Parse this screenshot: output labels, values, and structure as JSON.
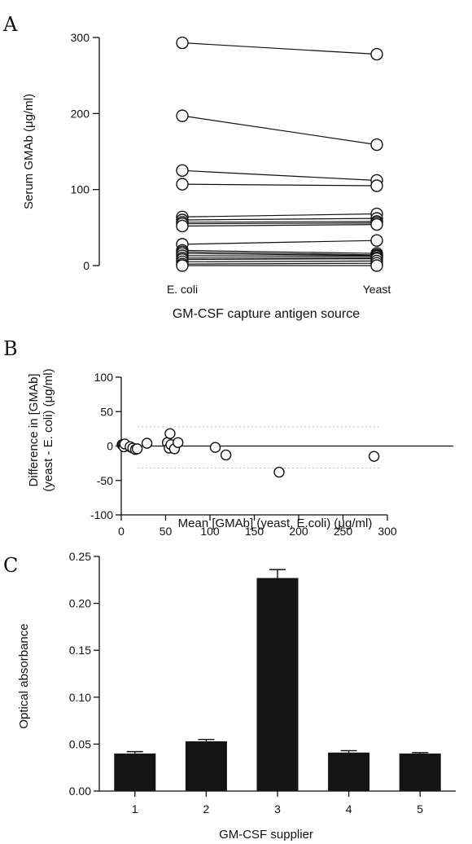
{
  "chart_data": [
    {
      "panel": "A",
      "type": "line",
      "xlabel": "GM-CSF capture antigen source",
      "ylabel": "Serum GMAb (μg/ml)",
      "categories": [
        "E. coli",
        "Yeast"
      ],
      "ylim": [
        0,
        300
      ],
      "yticks": [
        "0",
        "100",
        "200",
        "300"
      ],
      "pairs": [
        [
          293,
          278
        ],
        [
          197,
          159
        ],
        [
          125,
          112
        ],
        [
          107,
          105
        ],
        [
          64,
          68
        ],
        [
          60,
          62
        ],
        [
          57,
          58
        ],
        [
          55,
          56
        ],
        [
          52,
          54
        ],
        [
          28,
          33
        ],
        [
          20,
          16
        ],
        [
          18,
          14
        ],
        [
          16,
          13
        ],
        [
          13,
          12
        ],
        [
          10,
          10
        ],
        [
          8,
          9
        ],
        [
          5,
          6
        ],
        [
          2,
          3
        ],
        [
          0,
          0
        ]
      ]
    },
    {
      "panel": "B",
      "type": "scatter",
      "xlabel": "Mean [GMAb] (yeast, E.coli) (μg/ml)",
      "ylabel_line1": "Difference in [GMAb]",
      "ylabel_line2": "(yeast - E. coli) (μg/ml)",
      "xlim": [
        0,
        300
      ],
      "ylim": [
        -100,
        100
      ],
      "xticks": [
        "0",
        "50",
        "100",
        "150",
        "200",
        "250",
        "300"
      ],
      "yticks": [
        "-100",
        "-50",
        "0",
        "50",
        "100"
      ],
      "x": [
        1,
        2,
        3,
        4,
        10,
        13,
        16,
        18,
        29,
        52,
        54,
        55,
        56,
        60,
        64,
        106,
        118,
        178,
        285
      ],
      "y": [
        2,
        1,
        -1,
        3,
        -1,
        -3,
        -5,
        -4,
        4,
        5,
        -3,
        18,
        2,
        -4,
        5,
        -2,
        -13,
        -38,
        -15
      ]
    },
    {
      "panel": "C",
      "type": "bar",
      "xlabel": "GM-CSF supplier",
      "ylabel": "Optical absorbance",
      "categories": [
        "1",
        "2",
        "3",
        "4",
        "5"
      ],
      "values": [
        0.04,
        0.053,
        0.227,
        0.041,
        0.04
      ],
      "errors": [
        0.002,
        0.002,
        0.009,
        0.002,
        0.001
      ],
      "ylim": [
        0,
        0.25
      ],
      "yticks": [
        "0.00",
        "0.05",
        "0.10",
        "0.15",
        "0.20",
        "0.25"
      ]
    }
  ]
}
